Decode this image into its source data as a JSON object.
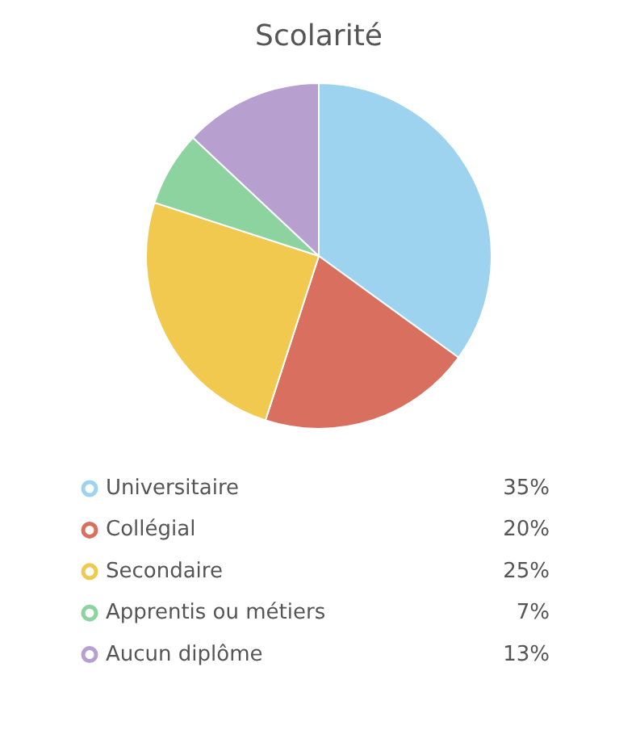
{
  "chart_data": {
    "type": "pie",
    "title": "Scolarité",
    "categories": [
      "Universitaire",
      "Collégial",
      "Secondaire",
      "Apprentis ou métiers",
      "Aucun diplôme"
    ],
    "values": [
      35,
      20,
      25,
      7,
      13
    ],
    "value_labels": [
      "35%",
      "20%",
      "25%",
      "7%",
      "13%"
    ],
    "colors": [
      "#9dd3ee",
      "#d9705f",
      "#f0c94e",
      "#8dd3a0",
      "#b79fcf"
    ],
    "legend": "bottom"
  }
}
